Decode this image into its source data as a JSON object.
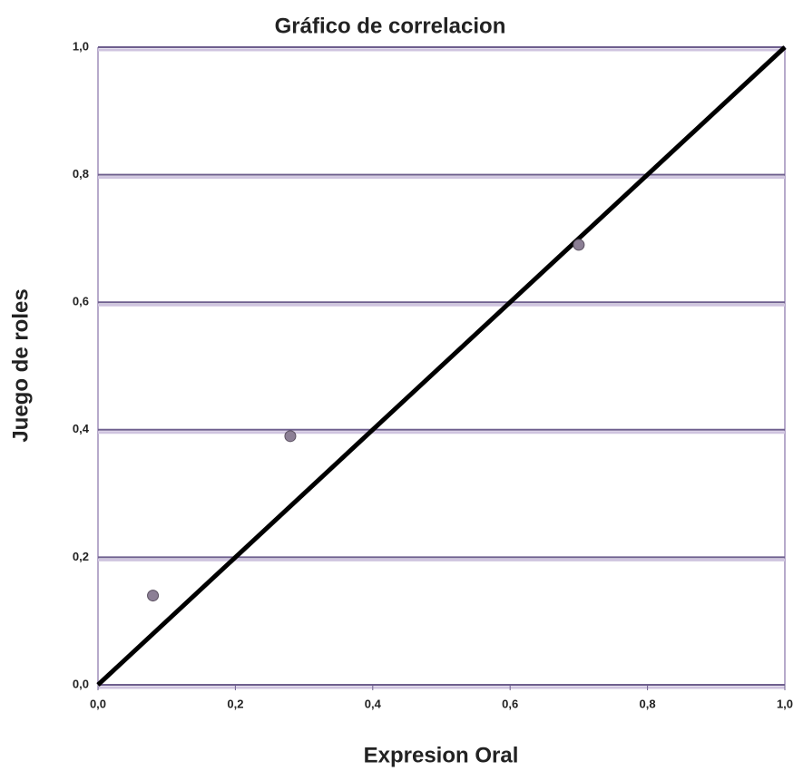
{
  "chart_data": {
    "type": "scatter",
    "title": "Gráfico de correlacion",
    "x_label": "Expresion Oral",
    "y_label": "Juego de roles",
    "x": [
      0.08,
      0.28,
      0.7
    ],
    "values": [
      0.14,
      0.39,
      0.69
    ],
    "color": "#8c7f95",
    "reference_line": {
      "x": [
        0,
        1
      ],
      "values": [
        0,
        1
      ],
      "color": "#000000"
    },
    "xlim": [
      0,
      1
    ],
    "ylim": [
      0,
      1
    ],
    "xticks": [
      {
        "value": 0,
        "label": "0,0"
      },
      {
        "value": 0.2,
        "label": "0,2"
      },
      {
        "value": 0.4,
        "label": "0,4"
      },
      {
        "value": 0.6,
        "label": "0,6"
      },
      {
        "value": 0.8,
        "label": "0,8"
      },
      {
        "value": 1,
        "label": "1,0"
      }
    ],
    "yticks": [
      {
        "value": 0,
        "label": "0,0"
      },
      {
        "value": 0.2,
        "label": "0,2"
      },
      {
        "value": 0.4,
        "label": "0,4"
      },
      {
        "value": 0.6,
        "label": "0,6"
      },
      {
        "value": 0.8,
        "label": "0,8"
      },
      {
        "value": 1,
        "label": "1,0"
      }
    ],
    "grid": true,
    "grid_color": "#6e5f8e"
  }
}
